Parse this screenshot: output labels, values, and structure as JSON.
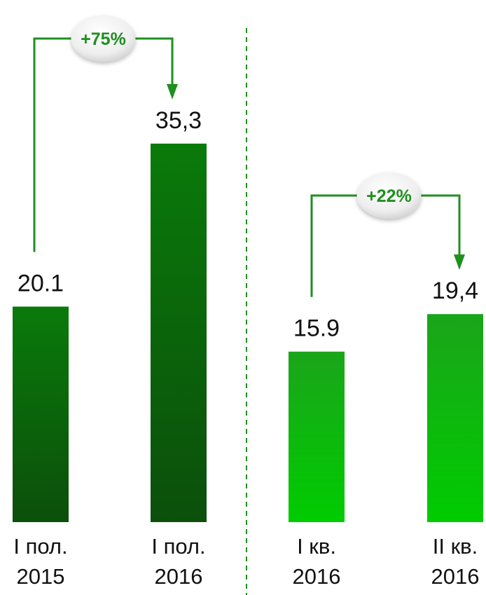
{
  "chart_data": {
    "type": "bar",
    "categories": [
      {
        "line1": "I пол.",
        "line2": "2015"
      },
      {
        "line1": "I пол.",
        "line2": "2016"
      },
      {
        "line1": "I кв.",
        "line2": "2016"
      },
      {
        "line1": "II кв.",
        "line2": "2016"
      }
    ],
    "values": [
      20.1,
      35.3,
      15.9,
      19.4
    ],
    "value_labels": [
      "20.1",
      "35,3",
      "15.9",
      "19,4"
    ],
    "ylim": [
      0,
      40
    ],
    "grid": false,
    "legend": "none",
    "groups": [
      {
        "bars": [
          0,
          1
        ],
        "comparison": {
          "from": 0,
          "to": 1,
          "label": "+75%"
        }
      },
      {
        "bars": [
          2,
          3
        ],
        "comparison": {
          "from": 2,
          "to": 3,
          "label": "+22%"
        }
      }
    ],
    "colors": {
      "dark_green_top": "#0a7a0a",
      "dark_green_bottom": "#0b4f0b",
      "bright_green_top": "#1aa51a",
      "bright_green_bottom": "#00cc00",
      "accent_line": "#1f8f1f",
      "badge_text": "#1f8f1f",
      "label_text": "#111111"
    }
  }
}
